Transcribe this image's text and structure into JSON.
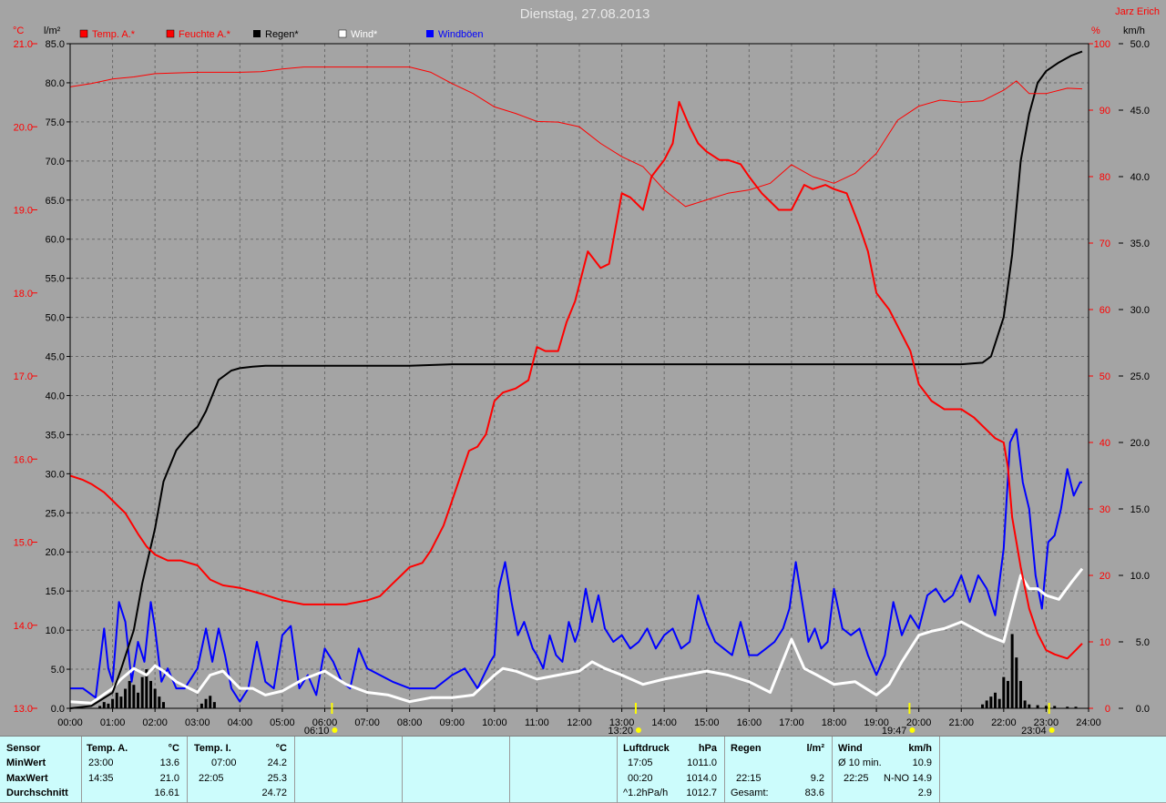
{
  "window": {
    "title": "Dienstag, 27.08.2013",
    "author": "Jarz Erich"
  },
  "colors": {
    "background": "#a4a4a4",
    "temperature": "#ff0000",
    "humidity": "#ff0000",
    "rain": "#000000",
    "wind": "#ffffff",
    "gusts": "#0000ff",
    "temp_axis": "#ff0000",
    "panel": "#ccfcfc",
    "marker": "#ffff00"
  },
  "chart_data": {
    "type": "line",
    "title": "Dienstag, 27.08.2013",
    "x_ticks": [
      "00:00",
      "01:00",
      "02:00",
      "03:00",
      "04:00",
      "05:00",
      "06:00",
      "07:00",
      "08:00",
      "09:00",
      "10:00",
      "11:00",
      "12:00",
      "13:00",
      "14:00",
      "15:00",
      "16:00",
      "17:00",
      "18:00",
      "19:00",
      "20:00",
      "21:00",
      "22:00",
      "23:00",
      "24:00"
    ],
    "xlim": [
      0,
      24
    ],
    "grid": true,
    "legend_position": "top-left",
    "axes": {
      "temp": {
        "unit_label": "°C",
        "ylim": [
          13.0,
          21.0
        ],
        "ticks": [
          "13.0",
          "14.0",
          "15.0",
          "16.0",
          "17.0",
          "18.0",
          "19.0",
          "20.0",
          "21.0"
        ]
      },
      "rain": {
        "unit_label": "l/m²",
        "ylim": [
          0,
          85
        ],
        "ticks": [
          "0.0",
          "5.0",
          "10.0",
          "15.0",
          "20.0",
          "25.0",
          "30.0",
          "35.0",
          "40.0",
          "45.0",
          "50.0",
          "55.0",
          "60.0",
          "65.0",
          "70.0",
          "75.0",
          "80.0",
          "85.0"
        ]
      },
      "humidity": {
        "unit_label": "%",
        "ylim": [
          0,
          100
        ],
        "ticks": [
          "0",
          "10",
          "20",
          "30",
          "40",
          "50",
          "60",
          "70",
          "80",
          "90",
          "100"
        ]
      },
      "wind": {
        "unit_label": "km/h",
        "ylim": [
          0,
          50
        ],
        "ticks": [
          "0.0",
          "5.0",
          "10.0",
          "15.0",
          "20.0",
          "25.0",
          "30.0",
          "35.0",
          "40.0",
          "45.0",
          "50.0"
        ]
      }
    },
    "legend": [
      "Temp. A.*",
      "Feuchte A.*",
      "Regen*",
      "Wind*",
      "Windböen"
    ],
    "series": [
      {
        "name": "Temp. A.*",
        "axis": "temp",
        "color": "#ff0000",
        "width": 2,
        "x": [
          0,
          0.3,
          0.5,
          0.8,
          1.0,
          1.3,
          1.6,
          1.8,
          2.0,
          2.3,
          2.6,
          3.0,
          3.3,
          3.6,
          4.0,
          4.5,
          5.0,
          5.5,
          6.0,
          6.5,
          7.0,
          7.3,
          7.6,
          7.8,
          8.0,
          8.3,
          8.5,
          8.8,
          9.0,
          9.2,
          9.4,
          9.6,
          9.8,
          10.0,
          10.2,
          10.5,
          10.8,
          11.0,
          11.2,
          11.5,
          11.7,
          11.9,
          12.2,
          12.5,
          12.7,
          13.0,
          13.2,
          13.5,
          13.7,
          14.0,
          14.2,
          14.35,
          14.6,
          14.8,
          15.0,
          15.3,
          15.5,
          15.8,
          16.0,
          16.3,
          16.5,
          16.7,
          17.0,
          17.3,
          17.5,
          17.8,
          18.0,
          18.3,
          18.6,
          18.8,
          19.0,
          19.3,
          19.5,
          19.8,
          20.0,
          20.3,
          20.6,
          21.0,
          21.3,
          21.6,
          21.8,
          22.0,
          22.1,
          22.2,
          22.4,
          22.6,
          22.8,
          23.0,
          23.2,
          23.5,
          23.7,
          23.85
        ],
        "y": [
          15.8,
          15.75,
          15.7,
          15.6,
          15.5,
          15.35,
          15.1,
          14.95,
          14.85,
          14.78,
          14.78,
          14.72,
          14.55,
          14.48,
          14.45,
          14.38,
          14.3,
          14.25,
          14.25,
          14.25,
          14.3,
          14.35,
          14.5,
          14.6,
          14.7,
          14.75,
          14.9,
          15.2,
          15.5,
          15.8,
          16.1,
          16.15,
          16.3,
          16.7,
          16.8,
          16.85,
          16.95,
          17.35,
          17.3,
          17.3,
          17.65,
          17.9,
          18.5,
          18.3,
          18.35,
          19.2,
          19.15,
          19.0,
          19.4,
          19.6,
          19.8,
          20.3,
          20.0,
          19.8,
          19.7,
          19.6,
          19.6,
          19.55,
          19.4,
          19.2,
          19.1,
          19.0,
          19.0,
          19.3,
          19.25,
          19.3,
          19.25,
          19.2,
          18.8,
          18.5,
          18.0,
          17.8,
          17.6,
          17.3,
          16.9,
          16.7,
          16.6,
          16.6,
          16.5,
          16.35,
          16.25,
          16.2,
          15.9,
          15.3,
          14.7,
          14.2,
          13.9,
          13.7,
          13.65,
          13.6,
          13.7,
          13.78
        ]
      },
      {
        "name": "Feuchte A.*",
        "axis": "humidity",
        "color": "#ff0000",
        "width": 1,
        "x": [
          0,
          0.5,
          1.0,
          1.5,
          2.0,
          2.5,
          3.0,
          3.5,
          4.0,
          4.5,
          5.0,
          5.5,
          6.0,
          6.5,
          7.0,
          7.5,
          8.0,
          8.5,
          9.0,
          9.5,
          10.0,
          10.5,
          11.0,
          11.5,
          12.0,
          12.5,
          13.0,
          13.5,
          14.0,
          14.5,
          15.0,
          15.5,
          16.0,
          16.5,
          17.0,
          17.5,
          18.0,
          18.5,
          19.0,
          19.5,
          20.0,
          20.5,
          21.0,
          21.5,
          22.0,
          22.3,
          22.6,
          23.0,
          23.5,
          23.85
        ],
        "y": [
          93.5,
          94,
          94.7,
          95,
          95.5,
          95.6,
          95.7,
          95.7,
          95.7,
          95.8,
          96.2,
          96.5,
          96.5,
          96.5,
          96.5,
          96.5,
          96.5,
          95.7,
          94,
          92.5,
          90.5,
          89.5,
          88.3,
          88.2,
          87.5,
          85,
          83,
          81.5,
          78,
          75.5,
          76.5,
          77.5,
          78,
          79,
          81.8,
          80,
          79,
          80.5,
          83.5,
          88.5,
          90.6,
          91.5,
          91.2,
          91.4,
          93,
          94.4,
          92.5,
          92.5,
          93.3,
          93.2
        ]
      },
      {
        "name": "Regen*",
        "axis": "rain",
        "color": "#000000",
        "width": 2,
        "x": [
          0,
          0.5,
          1.0,
          1.2,
          1.5,
          1.7,
          2.0,
          2.2,
          2.5,
          2.8,
          3.0,
          3.2,
          3.5,
          3.8,
          4.0,
          4.3,
          4.6,
          5.0,
          6.0,
          7.0,
          8.0,
          9.0,
          10.0,
          11.0,
          12.0,
          13.0,
          14.0,
          15.0,
          16.0,
          17.0,
          18.0,
          19.0,
          20.0,
          21.0,
          21.5,
          21.7,
          22.0,
          22.2,
          22.4,
          22.6,
          22.8,
          23.0,
          23.3,
          23.6,
          23.85
        ],
        "y": [
          0,
          0.3,
          2,
          5,
          10,
          16,
          23,
          29,
          33,
          35,
          36,
          38,
          42,
          43.2,
          43.5,
          43.7,
          43.8,
          43.8,
          43.8,
          43.8,
          43.8,
          44,
          44,
          44,
          44,
          44,
          44,
          44,
          44,
          44,
          44,
          44,
          44,
          44,
          44.2,
          45,
          50,
          58,
          70,
          76,
          80,
          81.5,
          82.6,
          83.5,
          84
        ]
      },
      {
        "name": "Wind*",
        "axis": "wind",
        "color": "#ffffff",
        "width": 3,
        "x": [
          0,
          0.5,
          1.0,
          1.2,
          1.5,
          1.8,
          2.0,
          2.2,
          2.5,
          3.0,
          3.3,
          3.6,
          4.0,
          4.3,
          4.6,
          5.0,
          5.5,
          6.0,
          6.5,
          7.0,
          7.5,
          8.0,
          8.5,
          9.0,
          9.5,
          10.0,
          10.2,
          10.5,
          11.0,
          11.5,
          12.0,
          12.3,
          12.6,
          13.0,
          13.5,
          14.0,
          14.5,
          15.0,
          15.5,
          16.0,
          16.5,
          17.0,
          17.3,
          17.6,
          18.0,
          18.5,
          19.0,
          19.3,
          19.6,
          20.0,
          20.3,
          20.6,
          21.0,
          21.3,
          21.6,
          22.0,
          22.2,
          22.4,
          22.6,
          22.8,
          23.0,
          23.3,
          23.6,
          23.85
        ],
        "y": [
          0.5,
          0.4,
          1.5,
          2.2,
          3,
          2.5,
          3.2,
          2.8,
          2,
          1.2,
          2.5,
          2.8,
          1.5,
          1.5,
          1,
          1.3,
          2.2,
          2.8,
          1.8,
          1.2,
          1.0,
          0.5,
          0.8,
          0.8,
          1.0,
          2.5,
          3.0,
          2.8,
          2.2,
          2.5,
          2.8,
          3.5,
          3.0,
          2.5,
          1.8,
          2.2,
          2.5,
          2.8,
          2.5,
          2.0,
          1.2,
          5.2,
          3.0,
          2.5,
          1.8,
          2.0,
          1.0,
          1.8,
          3.5,
          5.5,
          5.8,
          6.0,
          6.5,
          6.0,
          5.5,
          5.0,
          7.5,
          10,
          9.0,
          9.0,
          8.5,
          8.2,
          9.5,
          10.5
        ]
      },
      {
        "name": "Windböen",
        "axis": "wind",
        "color": "#0000ff",
        "width": 2,
        "x": [
          0,
          0.3,
          0.6,
          0.8,
          0.9,
          1.0,
          1.15,
          1.3,
          1.45,
          1.6,
          1.75,
          1.9,
          2.0,
          2.15,
          2.3,
          2.5,
          2.7,
          3.0,
          3.2,
          3.35,
          3.5,
          3.65,
          3.8,
          4.0,
          4.2,
          4.4,
          4.6,
          4.8,
          5.0,
          5.2,
          5.4,
          5.6,
          5.8,
          6.0,
          6.2,
          6.4,
          6.6,
          6.8,
          7.0,
          7.3,
          7.6,
          8.0,
          8.3,
          8.6,
          9.0,
          9.3,
          9.6,
          9.9,
          10.0,
          10.1,
          10.25,
          10.4,
          10.55,
          10.7,
          10.9,
          11.0,
          11.15,
          11.3,
          11.45,
          11.6,
          11.75,
          11.9,
          12.0,
          12.15,
          12.3,
          12.45,
          12.6,
          12.8,
          13.0,
          13.2,
          13.4,
          13.6,
          13.8,
          14.0,
          14.2,
          14.4,
          14.6,
          14.8,
          15.0,
          15.2,
          15.4,
          15.6,
          15.8,
          16.0,
          16.2,
          16.4,
          16.6,
          16.8,
          16.95,
          17.1,
          17.25,
          17.4,
          17.55,
          17.7,
          17.85,
          18.0,
          18.2,
          18.4,
          18.6,
          18.8,
          19.0,
          19.2,
          19.4,
          19.6,
          19.8,
          20.0,
          20.2,
          20.4,
          20.6,
          20.8,
          21.0,
          21.2,
          21.4,
          21.6,
          21.8,
          22.0,
          22.15,
          22.3,
          22.45,
          22.6,
          22.75,
          22.9,
          23.05,
          23.2,
          23.35,
          23.5,
          23.65,
          23.8,
          23.85
        ],
        "y": [
          1.5,
          1.5,
          0.8,
          6.0,
          3.0,
          2.0,
          8.0,
          6.5,
          2.0,
          5.0,
          3.5,
          8.0,
          6.0,
          2.0,
          3.0,
          1.5,
          1.5,
          3.0,
          6.0,
          3.5,
          6.0,
          4.0,
          1.5,
          0.5,
          1.5,
          5.0,
          2.0,
          1.5,
          5.5,
          6.2,
          1.5,
          2.5,
          1.0,
          4.5,
          3.5,
          2.0,
          1.5,
          4.5,
          3.0,
          2.5,
          2.0,
          1.5,
          1.5,
          1.5,
          2.5,
          3.0,
          1.5,
          3.5,
          4.0,
          9.0,
          11.0,
          8.0,
          5.5,
          6.5,
          4.5,
          4.0,
          3.0,
          5.5,
          4.0,
          3.5,
          6.5,
          5.0,
          6.0,
          9.0,
          6.5,
          8.5,
          6.0,
          5.0,
          5.5,
          4.5,
          5.0,
          6.0,
          4.5,
          5.5,
          6.0,
          4.5,
          5.0,
          8.5,
          6.5,
          5.0,
          4.5,
          4.0,
          6.5,
          4.0,
          4.0,
          4.5,
          5.0,
          6.0,
          7.5,
          11.0,
          8.0,
          5.0,
          6.0,
          4.5,
          5.0,
          9.0,
          6.0,
          5.5,
          6.0,
          4.0,
          2.5,
          4.0,
          8.0,
          5.5,
          7.0,
          6.0,
          8.5,
          9.0,
          8.0,
          8.5,
          10.0,
          8.0,
          10.0,
          9.0,
          7.0,
          12.0,
          20.0,
          21.0,
          17.0,
          15.0,
          10.0,
          7.5,
          12.5,
          13.0,
          15.0,
          18.0,
          16.0,
          17.0,
          17.0
        ]
      }
    ],
    "rain_bars": {
      "name": "Regen (Niederschlag)",
      "axis": "rain",
      "x": [
        0.7,
        0.8,
        0.9,
        1.0,
        1.1,
        1.2,
        1.3,
        1.4,
        1.5,
        1.6,
        1.7,
        1.8,
        1.9,
        2.0,
        2.1,
        2.2,
        3.1,
        3.2,
        3.3,
        3.4,
        21.5,
        21.6,
        21.7,
        21.8,
        21.9,
        22.0,
        22.1,
        22.2,
        22.3,
        22.4,
        22.5,
        22.6,
        22.8,
        23.0,
        23.2,
        23.5,
        23.7
      ],
      "y": [
        0.3,
        0.8,
        0.6,
        1.2,
        2.0,
        1.5,
        2.5,
        3.5,
        3.0,
        2.0,
        4.0,
        5.0,
        3.5,
        2.5,
        1.5,
        0.8,
        0.6,
        1.2,
        1.6,
        0.8,
        0.5,
        1.0,
        1.5,
        2.0,
        1.2,
        4.0,
        3.5,
        9.5,
        6.5,
        3.5,
        1.0,
        0.5,
        0.4,
        0.3,
        0.3,
        0.2,
        0.2
      ]
    },
    "markers": [
      {
        "label": "06:10",
        "x": 6.17,
        "icon": "sunrise-icon"
      },
      {
        "label": "13:20",
        "x": 13.33,
        "icon": "noon-icon"
      },
      {
        "label": "19:47",
        "x": 19.78,
        "icon": "sunset-icon"
      },
      {
        "label": "23:04",
        "x": 23.07,
        "icon": "moon-icon"
      }
    ]
  },
  "panel": {
    "sensor": {
      "header": "Sensor",
      "rows": [
        "MinWert",
        "MaxWert",
        "Durchschnitt"
      ]
    },
    "temp_a": {
      "header": "Temp. A.",
      "unit": "°C",
      "min_time": "23:00",
      "min_value": "13.6",
      "max_time": "14:35",
      "max_value": "21.0",
      "avg_value": "16.61"
    },
    "temp_i": {
      "header": "Temp. I.",
      "unit": "°C",
      "min_time": "07:00",
      "min_value": "24.2",
      "max_time": "22:05",
      "max_value": "25.3",
      "avg_value": "24.72"
    },
    "luftdruck": {
      "header": "Luftdruck",
      "unit": "hPa",
      "min_time": "17:05",
      "min_value": "1011.0",
      "max_time": "00:20",
      "max_value": "1014.0",
      "trend_label": "^1.2hPa/h",
      "trend_value": "1012.7"
    },
    "regen": {
      "header": "Regen",
      "unit": "l/m²",
      "max_time": "22:15",
      "max_value": "9.2",
      "total_label": "Gesamt:",
      "total_value": "83.6"
    },
    "wind": {
      "header": "Wind",
      "unit": "km/h",
      "avg_label": "Ø 10 min.",
      "avg_value": "10.9",
      "max_time": "22:25",
      "max_dir": "N-NO",
      "max_value": "14.9",
      "mean_value": "2.9"
    }
  }
}
